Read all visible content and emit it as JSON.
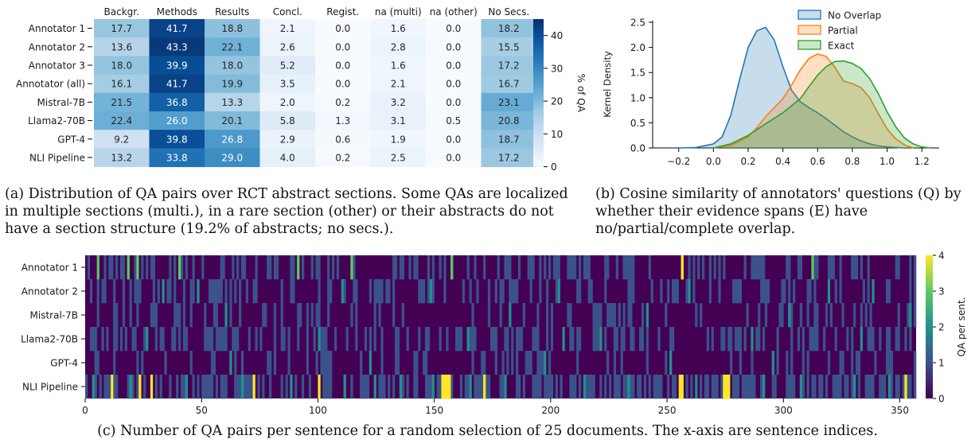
{
  "chart_data": [
    {
      "type": "heatmap",
      "panel": "a",
      "columns": [
        "Backgr.",
        "Methods",
        "Results",
        "Concl.",
        "Regist.",
        "na (multi)",
        "na (other)",
        "No Secs."
      ],
      "rows": [
        "Annotator 1",
        "Annotator 2",
        "Annotator 3",
        "Annotator (all)",
        "Mistral-7B",
        "Llama2-70B",
        "GPT-4",
        "NLI Pipeline"
      ],
      "values": [
        [
          17.7,
          41.7,
          18.8,
          2.1,
          0.0,
          1.6,
          0.0,
          18.2
        ],
        [
          13.6,
          43.3,
          22.1,
          2.6,
          0.0,
          2.8,
          0.0,
          15.5
        ],
        [
          18.0,
          39.9,
          18.0,
          5.2,
          0.0,
          1.6,
          0.0,
          17.2
        ],
        [
          16.1,
          41.7,
          19.9,
          3.5,
          0.0,
          2.1,
          0.0,
          16.7
        ],
        [
          21.5,
          36.8,
          13.3,
          2.0,
          0.2,
          3.2,
          0.0,
          23.1
        ],
        [
          22.4,
          26.0,
          20.1,
          5.8,
          1.3,
          3.1,
          0.5,
          20.8
        ],
        [
          9.2,
          39.8,
          26.8,
          2.9,
          0.6,
          1.9,
          0.0,
          18.7
        ],
        [
          13.2,
          33.8,
          29.0,
          4.0,
          0.2,
          2.5,
          0.0,
          17.2
        ]
      ],
      "colorbar": {
        "label": "% of QA",
        "ticks": [
          0,
          10,
          20,
          30,
          40
        ],
        "range": [
          0,
          45
        ]
      },
      "colormap": "Blues"
    },
    {
      "type": "area",
      "panel": "b",
      "ylabel": "Kernel Density",
      "xlim": [
        -0.35,
        1.3
      ],
      "ylim": [
        0,
        2.5
      ],
      "xticks": [
        "−0.2",
        "0.0",
        "0.2",
        "0.4",
        "0.6",
        "0.8",
        "1.0",
        "1.2"
      ],
      "xtick_values": [
        -0.2,
        0.0,
        0.2,
        0.4,
        0.6,
        0.8,
        1.0,
        1.2
      ],
      "yticks": [
        "0.0",
        "0.5",
        "1.0",
        "1.5",
        "2.0",
        "2.5"
      ],
      "ytick_values": [
        0,
        0.5,
        1.0,
        1.5,
        2.0,
        2.5
      ],
      "legend_position": "top-right",
      "series": [
        {
          "name": "No Overlap",
          "color": "#1f77b4",
          "x": [
            -0.2,
            -0.1,
            0.0,
            0.05,
            0.1,
            0.15,
            0.2,
            0.25,
            0.3,
            0.35,
            0.4,
            0.45,
            0.5,
            0.55,
            0.6,
            0.65,
            0.7,
            0.75,
            0.8,
            0.85,
            0.9,
            0.95,
            1.0,
            1.05,
            1.1
          ],
          "y": [
            0.0,
            0.01,
            0.08,
            0.22,
            0.65,
            1.35,
            2.0,
            2.33,
            2.4,
            2.15,
            1.62,
            1.15,
            0.92,
            0.8,
            0.7,
            0.58,
            0.45,
            0.32,
            0.22,
            0.14,
            0.08,
            0.04,
            0.02,
            0.01,
            0.0
          ]
        },
        {
          "name": "Partial",
          "color": "#ff7f0e",
          "x": [
            0.0,
            0.1,
            0.2,
            0.25,
            0.3,
            0.35,
            0.4,
            0.45,
            0.5,
            0.55,
            0.6,
            0.65,
            0.7,
            0.75,
            0.8,
            0.85,
            0.9,
            0.95,
            1.0,
            1.05,
            1.1,
            1.15
          ],
          "y": [
            0.0,
            0.05,
            0.22,
            0.4,
            0.62,
            0.8,
            0.98,
            1.25,
            1.55,
            1.78,
            1.87,
            1.82,
            1.6,
            1.33,
            1.28,
            1.2,
            1.0,
            0.68,
            0.38,
            0.18,
            0.06,
            0.0
          ]
        },
        {
          "name": "Exact",
          "color": "#2ca02c",
          "x": [
            0.0,
            0.1,
            0.2,
            0.3,
            0.4,
            0.5,
            0.55,
            0.6,
            0.65,
            0.7,
            0.75,
            0.8,
            0.85,
            0.9,
            0.95,
            1.0,
            1.05,
            1.1,
            1.15,
            1.2,
            1.25
          ],
          "y": [
            0.0,
            0.08,
            0.25,
            0.48,
            0.7,
            0.98,
            1.22,
            1.45,
            1.62,
            1.72,
            1.73,
            1.68,
            1.58,
            1.38,
            1.08,
            0.72,
            0.42,
            0.2,
            0.08,
            0.02,
            0.0
          ]
        }
      ]
    },
    {
      "type": "heatmap",
      "panel": "c",
      "rows": [
        "Annotator 1",
        "Annotator 2",
        "Mistral-7B",
        "Llama2-70B",
        "GPT-4",
        "NLI Pipeline"
      ],
      "x_range": [
        0,
        357
      ],
      "xticks": [
        0,
        50,
        100,
        150,
        200,
        250,
        300,
        350
      ],
      "colorbar": {
        "label": "QA per sent.",
        "ticks": [
          0,
          1,
          2,
          3,
          4
        ],
        "range": [
          0,
          4
        ]
      },
      "colormap": "viridis",
      "highlighted_cells": [
        {
          "row": "Annotator 1",
          "x": [
            5,
            18,
            22,
            40,
            91,
            114,
            157,
            256,
            312
          ],
          "value": 3
        },
        {
          "row": "Annotator 1",
          "x": [
            256
          ],
          "value": 4
        },
        {
          "row": "Annotator 2",
          "x": [
            33,
            48,
            110,
            148,
            203,
            259,
            319,
            338
          ],
          "value": 2
        },
        {
          "row": "Mistral-7B",
          "x": [
            60,
            182,
            241,
            302,
            354
          ],
          "value": 2
        },
        {
          "row": "Llama2-70B",
          "x": [
            26,
            100,
            164,
            205,
            221,
            286,
            333
          ],
          "value": 2
        },
        {
          "row": "GPT-4",
          "x": [
            62,
            122,
            197,
            251,
            295
          ],
          "value": 2
        },
        {
          "row": "NLI Pipeline",
          "x": [
            11,
            23,
            28,
            72,
            100,
            153,
            154,
            155,
            156,
            171,
            255,
            256,
            274,
            275,
            276,
            352
          ],
          "value": 4
        },
        {
          "row": "NLI Pipeline",
          "x": [
            3,
            19,
            43,
            67,
            88,
            111,
            124,
            135,
            149,
            165,
            180,
            214,
            233,
            262,
            291,
            307,
            330,
            345
          ],
          "value": 2
        }
      ]
    }
  ],
  "captions": {
    "a": "(a) Distribution of QA pairs over RCT abstract sections. Some QAs are localized in multiple sections (multi.), in a rare section (other) or their abstracts do not have a section structure (19.2% of abstracts; no secs.).",
    "b": "(b) Cosine similarity of annotators' questions (Q) by whether their evidence spans (E) have no/partial/complete overlap.",
    "c": "(c) Number of QA pairs per sentence for a random selection of 25 documents. The x-axis are sentence indices."
  }
}
